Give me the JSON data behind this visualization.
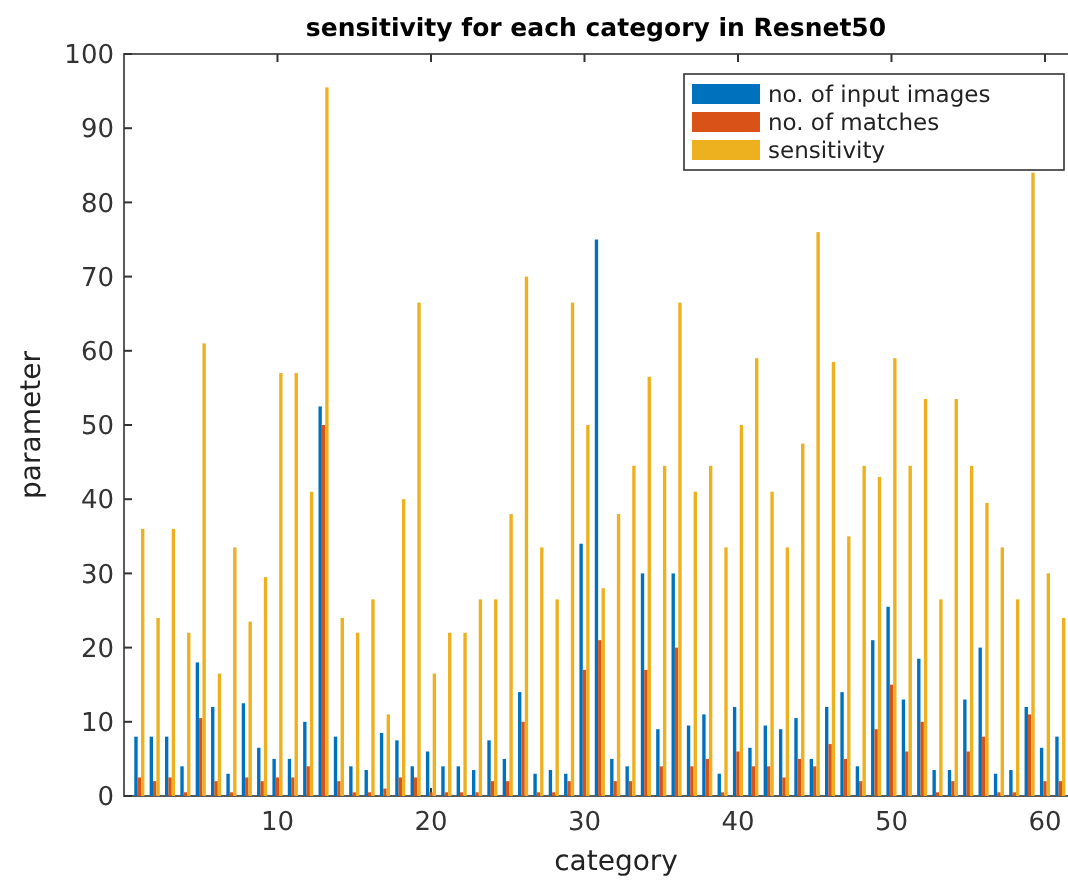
{
  "chart_data": {
    "type": "bar",
    "title": "sensitivity for each category in Resnet50",
    "xlabel": "category",
    "ylabel": "parameter",
    "x": [
      1,
      2,
      3,
      4,
      5,
      6,
      7,
      8,
      9,
      10,
      11,
      12,
      13,
      14,
      15,
      16,
      17,
      18,
      19,
      20,
      21,
      22,
      23,
      24,
      25,
      26,
      27,
      28,
      29,
      30,
      31,
      32,
      33,
      34,
      35,
      36,
      37,
      38,
      39,
      40,
      41,
      42,
      43,
      44,
      45,
      46,
      47,
      48,
      49,
      50,
      51,
      52,
      53,
      54,
      55,
      56,
      57,
      58,
      59,
      60,
      61
    ],
    "xlim": [
      0,
      61.5
    ],
    "xticks": [
      10,
      20,
      30,
      40,
      50,
      60
    ],
    "ylim": [
      0,
      100
    ],
    "yticks": [
      0,
      10,
      20,
      30,
      40,
      50,
      60,
      70,
      80,
      90,
      100
    ],
    "grid": false,
    "legend": "top right",
    "series": [
      {
        "name": "no. of input images",
        "color": "#0072bd",
        "values": [
          8,
          8,
          8,
          4,
          18,
          12,
          3,
          12.5,
          6.5,
          5,
          5,
          10,
          52.5,
          8,
          4,
          3.5,
          8.5,
          7.5,
          4,
          6,
          4,
          4,
          3.5,
          7.5,
          5,
          14,
          3,
          3.5,
          3,
          34,
          75,
          5,
          4,
          30,
          9,
          30,
          9.5,
          11,
          3,
          12,
          6.5,
          9.5,
          9,
          10.5,
          5,
          12,
          14,
          4,
          21,
          25.5,
          13,
          18.5,
          3.5,
          3.5,
          13,
          20,
          3,
          3.5,
          12,
          6.5,
          8
        ]
      },
      {
        "name": "no. of matches",
        "color": "#d95319",
        "values": [
          2.5,
          2,
          2.5,
          0.5,
          10.5,
          2,
          0.5,
          2.5,
          2,
          2.5,
          2.5,
          4,
          50,
          2,
          0.5,
          0.5,
          1,
          2.5,
          2.5,
          0.5,
          0.5,
          0.5,
          0.5,
          2,
          2,
          10,
          0.5,
          0.5,
          2,
          17,
          21,
          2,
          2,
          17,
          4,
          20,
          4,
          5,
          0.5,
          6,
          4,
          4,
          2.5,
          5,
          4,
          7,
          5,
          2,
          9,
          15,
          6,
          10,
          0.5,
          2,
          6,
          8,
          0.5,
          0.5,
          11,
          2,
          2
        ]
      },
      {
        "name": "sensitivity",
        "color": "#edb120",
        "values": [
          36,
          24,
          36,
          22,
          61,
          16.5,
          33.5,
          23.5,
          29.5,
          57,
          57,
          41,
          95.5,
          24,
          22,
          26.5,
          11,
          40,
          66.5,
          16.5,
          22,
          22,
          26.5,
          26.5,
          38,
          70,
          33.5,
          26.5,
          66.5,
          50,
          28,
          38,
          44.5,
          56.5,
          44.5,
          66.5,
          41,
          44.5,
          33.5,
          50,
          59,
          41,
          33.5,
          47.5,
          76,
          58.5,
          35,
          44.5,
          43,
          59,
          44.5,
          53.5,
          26.5,
          53.5,
          44.5,
          39.5,
          33.5,
          26.5,
          84,
          30,
          24
        ]
      }
    ]
  }
}
